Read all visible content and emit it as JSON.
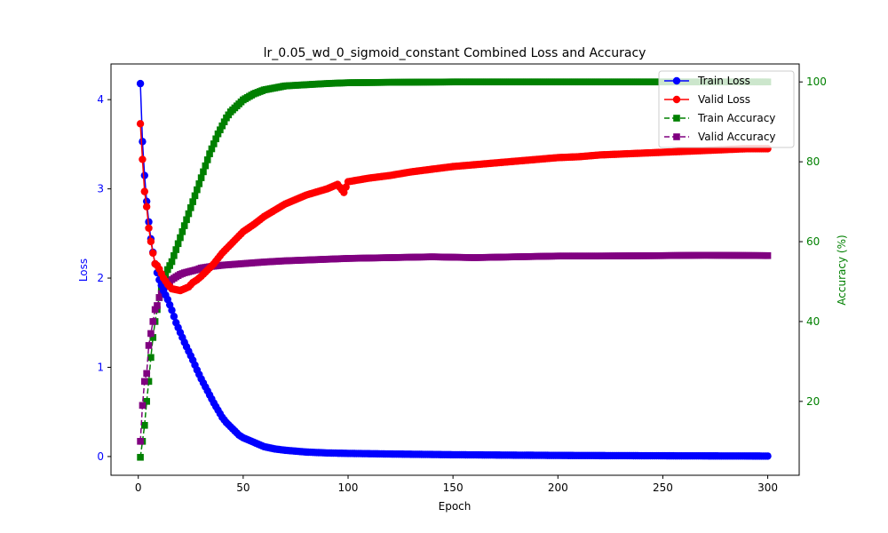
{
  "chart_data": {
    "type": "line",
    "title": "lr_0.05_wd_0_sigmoid_constant Combined Loss and Accuracy",
    "xlabel": "Epoch",
    "ylabel_left": "Loss",
    "ylabel_right": "Accuracy (%)",
    "xlim": [
      -13,
      315
    ],
    "ylim_left": [
      -0.21,
      4.4
    ],
    "ylim_right": [
      1.5,
      104.5
    ],
    "xticks": [
      0,
      50,
      100,
      150,
      200,
      250,
      300
    ],
    "yticks_left": [
      0,
      1,
      2,
      3,
      4
    ],
    "yticks_right": [
      20,
      40,
      60,
      80,
      100
    ],
    "grid": false,
    "legend_position": "top-right",
    "colors": {
      "train_loss": "#0000ff",
      "valid_loss": "#ff0000",
      "train_acc": "#008000",
      "valid_acc": "#800080",
      "left_axis": "#0000ff",
      "right_axis": "#008000"
    },
    "epochs": {
      "start": 1,
      "end": 300
    },
    "series": [
      {
        "name": "Train Loss",
        "axis": "left",
        "style": "solid",
        "marker": "circle",
        "color": "#0000ff",
        "points": [
          [
            1,
            4.18
          ],
          [
            2,
            3.53
          ],
          [
            3,
            3.15
          ],
          [
            4,
            2.86
          ],
          [
            5,
            2.63
          ],
          [
            6,
            2.44
          ],
          [
            7,
            2.29
          ],
          [
            8,
            2.16
          ],
          [
            9,
            2.06
          ],
          [
            10,
            1.98
          ],
          [
            12,
            1.86
          ],
          [
            14,
            1.76
          ],
          [
            16,
            1.64
          ],
          [
            18,
            1.5
          ],
          [
            20,
            1.39
          ],
          [
            22,
            1.28
          ],
          [
            24,
            1.18
          ],
          [
            26,
            1.08
          ],
          [
            28,
            0.97
          ],
          [
            30,
            0.87
          ],
          [
            32,
            0.78
          ],
          [
            34,
            0.69
          ],
          [
            36,
            0.6
          ],
          [
            38,
            0.52
          ],
          [
            40,
            0.44
          ],
          [
            42,
            0.38
          ],
          [
            45,
            0.31
          ],
          [
            48,
            0.24
          ],
          [
            50,
            0.21
          ],
          [
            55,
            0.16
          ],
          [
            60,
            0.11
          ],
          [
            65,
            0.085
          ],
          [
            70,
            0.07
          ],
          [
            80,
            0.05
          ],
          [
            90,
            0.04
          ],
          [
            100,
            0.035
          ],
          [
            120,
            0.028
          ],
          [
            150,
            0.02
          ],
          [
            200,
            0.012
          ],
          [
            250,
            0.008
          ],
          [
            300,
            0.005
          ]
        ]
      },
      {
        "name": "Valid Loss",
        "axis": "left",
        "style": "solid",
        "marker": "circle",
        "color": "#ff0000",
        "points": [
          [
            1,
            3.73
          ],
          [
            2,
            3.33
          ],
          [
            3,
            2.97
          ],
          [
            4,
            2.8
          ],
          [
            5,
            2.56
          ],
          [
            6,
            2.41
          ],
          [
            7,
            2.28
          ],
          [
            8,
            2.16
          ],
          [
            9,
            2.14
          ],
          [
            10,
            2.1
          ],
          [
            12,
            2.0
          ],
          [
            14,
            1.93
          ],
          [
            16,
            1.88
          ],
          [
            18,
            1.87
          ],
          [
            20,
            1.86
          ],
          [
            22,
            1.88
          ],
          [
            24,
            1.9
          ],
          [
            26,
            1.95
          ],
          [
            28,
            1.98
          ],
          [
            30,
            2.02
          ],
          [
            33,
            2.09
          ],
          [
            36,
            2.16
          ],
          [
            40,
            2.28
          ],
          [
            45,
            2.4
          ],
          [
            50,
            2.52
          ],
          [
            55,
            2.6
          ],
          [
            60,
            2.69
          ],
          [
            65,
            2.76
          ],
          [
            70,
            2.83
          ],
          [
            80,
            2.93
          ],
          [
            90,
            3.0
          ],
          [
            95,
            3.05
          ],
          [
            98,
            2.96
          ],
          [
            100,
            3.08
          ],
          [
            110,
            3.12
          ],
          [
            120,
            3.15
          ],
          [
            130,
            3.19
          ],
          [
            140,
            3.22
          ],
          [
            150,
            3.25
          ],
          [
            160,
            3.27
          ],
          [
            170,
            3.29
          ],
          [
            180,
            3.31
          ],
          [
            190,
            3.33
          ],
          [
            200,
            3.35
          ],
          [
            210,
            3.36
          ],
          [
            220,
            3.38
          ],
          [
            230,
            3.39
          ],
          [
            240,
            3.4
          ],
          [
            250,
            3.41
          ],
          [
            260,
            3.42
          ],
          [
            270,
            3.43
          ],
          [
            280,
            3.44
          ],
          [
            290,
            3.45
          ],
          [
            300,
            3.45
          ]
        ]
      },
      {
        "name": "Train Accuracy",
        "axis": "right",
        "style": "dashed",
        "marker": "square",
        "color": "#008000",
        "points": [
          [
            1,
            6
          ],
          [
            2,
            10
          ],
          [
            3,
            14
          ],
          [
            4,
            20
          ],
          [
            5,
            25
          ],
          [
            6,
            31
          ],
          [
            7,
            36
          ],
          [
            8,
            40
          ],
          [
            9,
            43
          ],
          [
            10,
            46
          ],
          [
            12,
            50
          ],
          [
            14,
            53
          ],
          [
            16,
            55
          ],
          [
            18,
            58
          ],
          [
            20,
            61
          ],
          [
            22,
            64
          ],
          [
            24,
            67
          ],
          [
            26,
            70
          ],
          [
            28,
            73
          ],
          [
            30,
            76
          ],
          [
            32,
            79
          ],
          [
            34,
            82
          ],
          [
            36,
            84.5
          ],
          [
            38,
            87
          ],
          [
            40,
            89
          ],
          [
            42,
            91
          ],
          [
            44,
            92.5
          ],
          [
            46,
            93.5
          ],
          [
            48,
            94.5
          ],
          [
            50,
            95.5
          ],
          [
            55,
            97
          ],
          [
            60,
            98
          ],
          [
            65,
            98.5
          ],
          [
            70,
            99
          ],
          [
            80,
            99.3
          ],
          [
            90,
            99.6
          ],
          [
            100,
            99.8
          ],
          [
            120,
            99.9
          ],
          [
            150,
            100
          ],
          [
            200,
            100
          ],
          [
            250,
            100
          ],
          [
            300,
            100
          ]
        ]
      },
      {
        "name": "Valid Accuracy",
        "axis": "right",
        "style": "dashed",
        "marker": "square",
        "color": "#800080",
        "points": [
          [
            1,
            10
          ],
          [
            2,
            19
          ],
          [
            3,
            25
          ],
          [
            4,
            27
          ],
          [
            5,
            34
          ],
          [
            6,
            37
          ],
          [
            7,
            40
          ],
          [
            8,
            43
          ],
          [
            9,
            44
          ],
          [
            10,
            46
          ],
          [
            12,
            48
          ],
          [
            14,
            49.5
          ],
          [
            16,
            50.5
          ],
          [
            18,
            51.2
          ],
          [
            20,
            51.8
          ],
          [
            22,
            52.2
          ],
          [
            25,
            52.6
          ],
          [
            28,
            53
          ],
          [
            30,
            53.4
          ],
          [
            35,
            53.8
          ],
          [
            40,
            54.1
          ],
          [
            45,
            54.3
          ],
          [
            50,
            54.5
          ],
          [
            60,
            54.9
          ],
          [
            70,
            55.2
          ],
          [
            80,
            55.4
          ],
          [
            90,
            55.6
          ],
          [
            100,
            55.8
          ],
          [
            120,
            56
          ],
          [
            140,
            56.2
          ],
          [
            150,
            56.1
          ],
          [
            160,
            56
          ],
          [
            180,
            56.2
          ],
          [
            200,
            56.4
          ],
          [
            220,
            56.4
          ],
          [
            250,
            56.5
          ],
          [
            270,
            56.6
          ],
          [
            300,
            56.5
          ]
        ]
      }
    ]
  }
}
